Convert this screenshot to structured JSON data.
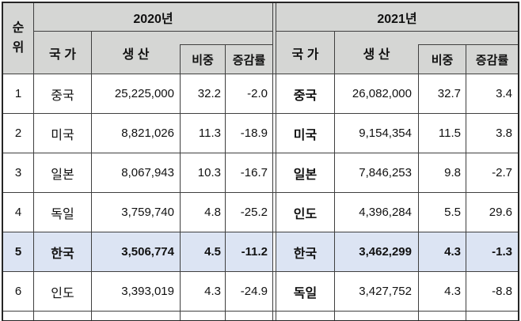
{
  "colors": {
    "header_bg": "#d5d6d4",
    "highlight": "#dce4f3",
    "grid": "#3f3f3f",
    "frame": "#262626"
  },
  "header": {
    "rank": "순위",
    "sections": [
      {
        "year": "2020년",
        "country": "국 가",
        "production": "생 산",
        "share": "비중",
        "change": "증감률"
      },
      {
        "year": "2021년",
        "country": "국 가",
        "production": "생 산",
        "share": "비중",
        "change": "증감률"
      }
    ]
  },
  "rows": [
    {
      "rank": "1",
      "highlight": false,
      "s2020": {
        "country": "중국",
        "production": "25,225,000",
        "share": "32.2",
        "change": "-2.0"
      },
      "s2021": {
        "country": "중국",
        "production": "26,082,000",
        "share": "32.7",
        "change": "3.4"
      }
    },
    {
      "rank": "2",
      "highlight": false,
      "s2020": {
        "country": "미국",
        "production": "8,821,026",
        "share": "11.3",
        "change": "-18.9"
      },
      "s2021": {
        "country": "미국",
        "production": "9,154,354",
        "share": "11.5",
        "change": "3.8"
      }
    },
    {
      "rank": "3",
      "highlight": false,
      "s2020": {
        "country": "일본",
        "production": "8,067,943",
        "share": "10.3",
        "change": "-16.7"
      },
      "s2021": {
        "country": "일본",
        "production": "7,846,253",
        "share": "9.8",
        "change": "-2.7"
      }
    },
    {
      "rank": "4",
      "highlight": false,
      "s2020": {
        "country": "독일",
        "production": "3,759,740",
        "share": "4.8",
        "change": "-25.2"
      },
      "s2021": {
        "country": "인도",
        "production": "4,396,284",
        "share": "5.5",
        "change": "29.6"
      }
    },
    {
      "rank": "5",
      "highlight": true,
      "s2020": {
        "country": "한국",
        "production": "3,506,774",
        "share": "4.5",
        "change": "-11.2"
      },
      "s2021": {
        "country": "한국",
        "production": "3,462,299",
        "share": "4.3",
        "change": "-1.3"
      }
    },
    {
      "rank": "6",
      "highlight": false,
      "s2020": {
        "country": "인도",
        "production": "3,393,019",
        "share": "4.3",
        "change": "-24.9"
      },
      "s2021": {
        "country": "독일",
        "production": "3,427,752",
        "share": "4.3",
        "change": "-8.8"
      }
    }
  ]
}
